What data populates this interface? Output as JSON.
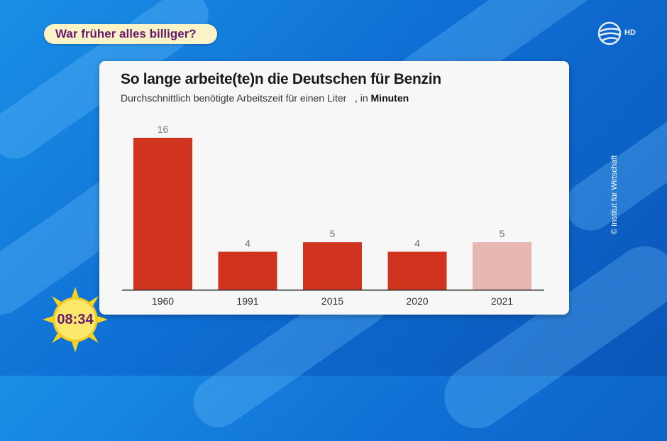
{
  "show": {
    "topic": "War früher alles billiger?",
    "logo_icon": "sat1-ball-icon",
    "hd_label": "HD",
    "time": "08:34",
    "credit": "© Institut für Wirtschaft"
  },
  "chart_data": {
    "type": "bar",
    "title": "So lange arbeite(te)n die Deutschen für Benzin",
    "subtitle_prefix": "Durchschnittlich benötigte Arbeitszeit für einen Liter   , in ",
    "subtitle_unit": "Minuten",
    "categories": [
      "1960",
      "1991",
      "2015",
      "2020",
      "2021"
    ],
    "values": [
      16,
      4,
      5,
      4,
      5
    ],
    "colors": [
      "#d0341f",
      "#d0341f",
      "#d0341f",
      "#d0341f",
      "#e8b7b2"
    ],
    "ylim": [
      0,
      16
    ],
    "grid": false,
    "legend": "none"
  }
}
